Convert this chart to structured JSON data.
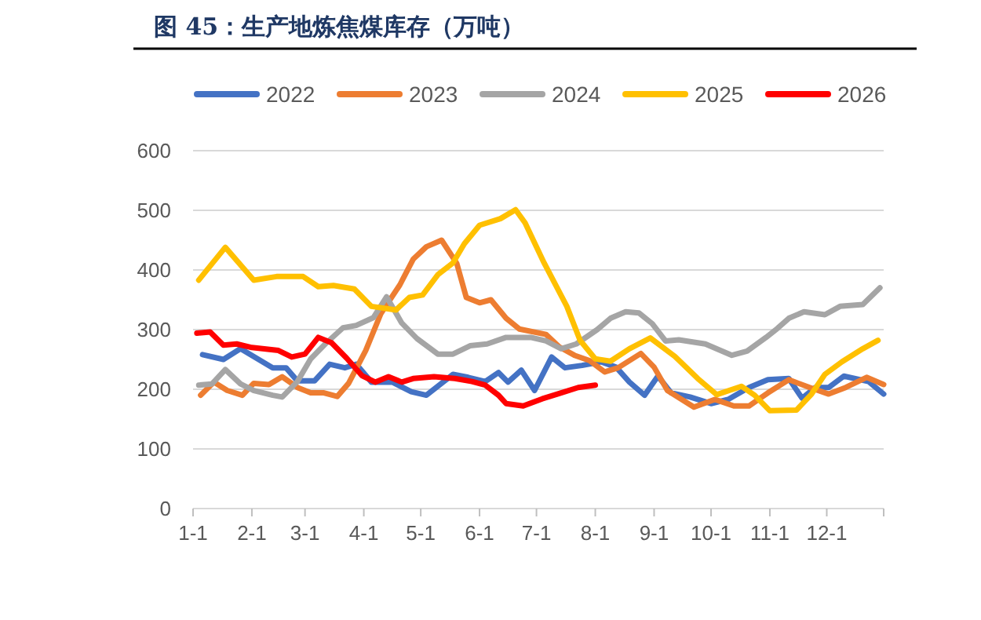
{
  "chart_data": {
    "type": "line",
    "title": "图 45：生产地炼焦煤库存（万吨）",
    "legend": "top",
    "grid": "y",
    "ylim": [
      0,
      600
    ],
    "yticks": [
      0,
      100,
      200,
      300,
      400,
      500,
      600
    ],
    "xlim": [
      "--01-01",
      "--12-31"
    ],
    "xticks": [
      {
        "value": "--01-01",
        "label": "1-1"
      },
      {
        "value": "--02-01",
        "label": "2-1"
      },
      {
        "value": "--03-01",
        "label": "3-1"
      },
      {
        "value": "--04-01",
        "label": "4-1"
      },
      {
        "value": "--05-01",
        "label": "5-1"
      },
      {
        "value": "--06-01",
        "label": "6-1"
      },
      {
        "value": "--07-01",
        "label": "7-1"
      },
      {
        "value": "--08-01",
        "label": "8-1"
      },
      {
        "value": "--09-01",
        "label": "9-1"
      },
      {
        "value": "--10-01",
        "label": "10-1"
      },
      {
        "value": "--11-01",
        "label": "11-1"
      },
      {
        "value": "--12-01",
        "label": "12-1"
      }
    ],
    "series": [
      {
        "name": "2022",
        "color": "#4472c4",
        "x": [
          "--01-06",
          "--01-17",
          "--01-26",
          "--02-12",
          "--02-19",
          "--02-25",
          "--03-06",
          "--03-14",
          "--03-22",
          "--03-28",
          "--04-05",
          "--04-16",
          "--04-26",
          "--05-04",
          "--05-18",
          "--05-26",
          "--06-04",
          "--06-11",
          "--06-16",
          "--06-23",
          "--06-30",
          "--07-09",
          "--07-16",
          "--07-25",
          "--08-04",
          "--08-12",
          "--08-19",
          "--08-27",
          "--09-03",
          "--09-10",
          "--09-20",
          "--10-01",
          "--10-10",
          "--10-21",
          "--10-31",
          "--11-11",
          "--11-18",
          "--11-25",
          "--12-02",
          "--12-10",
          "--12-23",
          "--12-31"
        ],
        "values": [
          258,
          250,
          268,
          236,
          236,
          214,
          214,
          242,
          236,
          242,
          212,
          212,
          196,
          190,
          225,
          220,
          213,
          228,
          212,
          232,
          198,
          254,
          236,
          240,
          246,
          237,
          212,
          190,
          222,
          194,
          187,
          176,
          183,
          203,
          216,
          218,
          185,
          203,
          203,
          222,
          213,
          192
        ]
      },
      {
        "name": "2023",
        "color": "#ed7d31",
        "x": [
          "--01-05",
          "--01-12",
          "--01-19",
          "--01-27",
          "--02-02",
          "--02-10",
          "--02-17",
          "--02-25",
          "--03-04",
          "--03-11",
          "--03-18",
          "--03-24",
          "--04-02",
          "--04-10",
          "--04-20",
          "--04-27",
          "--05-04",
          "--05-12",
          "--05-20",
          "--05-25",
          "--06-01",
          "--06-07",
          "--06-15",
          "--06-22",
          "--07-06",
          "--07-13",
          "--07-21",
          "--07-29",
          "--08-06",
          "--08-13",
          "--08-25",
          "--09-01",
          "--09-08",
          "--09-22",
          "--10-03",
          "--10-13",
          "--10-21",
          "--10-31",
          "--11-11",
          "--11-22",
          "--12-02",
          "--12-11",
          "--12-22",
          "--12-31"
        ],
        "values": [
          190,
          212,
          198,
          190,
          210,
          208,
          221,
          203,
          194,
          194,
          188,
          210,
          265,
          327,
          375,
          418,
          439,
          450,
          411,
          354,
          345,
          350,
          319,
          301,
          292,
          271,
          257,
          248,
          229,
          236,
          260,
          237,
          198,
          170,
          183,
          172,
          172,
          194,
          216,
          203,
          192,
          203,
          220,
          208
        ]
      },
      {
        "name": "2024",
        "color": "#a5a5a5",
        "x": [
          "--01-04",
          "--01-11",
          "--01-18",
          "--01-26",
          "--02-02",
          "--02-12",
          "--02-17",
          "--02-25",
          "--03-04",
          "--03-12",
          "--03-21",
          "--03-28",
          "--04-06",
          "--04-13",
          "--04-21",
          "--04-29",
          "--05-10",
          "--05-18",
          "--05-27",
          "--06-05",
          "--06-15",
          "--06-28",
          "--07-06",
          "--07-14",
          "--07-22",
          "--08-02",
          "--08-09",
          "--08-17",
          "--08-24",
          "--08-31",
          "--09-07",
          "--09-14",
          "--09-28",
          "--10-12",
          "--10-20",
          "--10-30",
          "--11-05",
          "--11-11",
          "--11-19",
          "--11-30",
          "--12-08",
          "--12-20",
          "--12-29"
        ],
        "values": [
          207,
          209,
          233,
          209,
          198,
          190,
          187,
          213,
          251,
          277,
          303,
          307,
          320,
          355,
          311,
          285,
          259,
          259,
          273,
          276,
          287,
          287,
          281,
          268,
          276,
          300,
          319,
          330,
          328,
          310,
          281,
          283,
          276,
          257,
          264,
          287,
          302,
          319,
          330,
          325,
          339,
          342,
          370
        ]
      },
      {
        "name": "2025",
        "color": "#ffc000",
        "x": [
          "--01-04",
          "--01-18",
          "--02-02",
          "--02-14",
          "--02-28",
          "--03-08",
          "--03-16",
          "--03-27",
          "--04-05",
          "--04-18",
          "--04-25",
          "--05-02",
          "--05-10",
          "--05-18",
          "--05-24",
          "--06-01",
          "--06-12",
          "--06-20",
          "--06-25",
          "--07-05",
          "--07-17",
          "--07-24",
          "--08-01",
          "--08-09",
          "--08-19",
          "--08-30",
          "--09-12",
          "--09-24",
          "--10-04",
          "--10-17",
          "--10-24",
          "--11-01",
          "--11-15",
          "--11-23",
          "--11-30",
          "--12-09",
          "--12-20",
          "--12-28"
        ],
        "values": [
          383,
          438,
          383,
          389,
          389,
          372,
          374,
          368,
          339,
          333,
          354,
          358,
          392,
          412,
          444,
          475,
          486,
          501,
          479,
          412,
          339,
          282,
          251,
          247,
          268,
          286,
          255,
          218,
          191,
          205,
          190,
          164,
          165,
          192,
          225,
          246,
          268,
          282
        ]
      },
      {
        "name": "2026",
        "color": "#ff0000",
        "x": [
          "--01-03",
          "--01-10",
          "--01-17",
          "--01-24",
          "--02-01",
          "--02-15",
          "--02-22",
          "--03-01",
          "--03-08",
          "--03-15",
          "--03-23",
          "--03-31",
          "--04-07",
          "--04-14",
          "--04-21",
          "--04-27",
          "--05-08",
          "--05-19",
          "--05-28",
          "--06-04",
          "--06-11",
          "--06-15",
          "--06-24",
          "--07-04",
          "--07-13",
          "--07-23",
          "--08-01"
        ],
        "values": [
          294,
          296,
          274,
          276,
          270,
          265,
          254,
          259,
          287,
          278,
          252,
          223,
          212,
          221,
          212,
          218,
          221,
          218,
          213,
          207,
          190,
          176,
          172,
          184,
          193,
          203,
          207
        ]
      }
    ]
  }
}
